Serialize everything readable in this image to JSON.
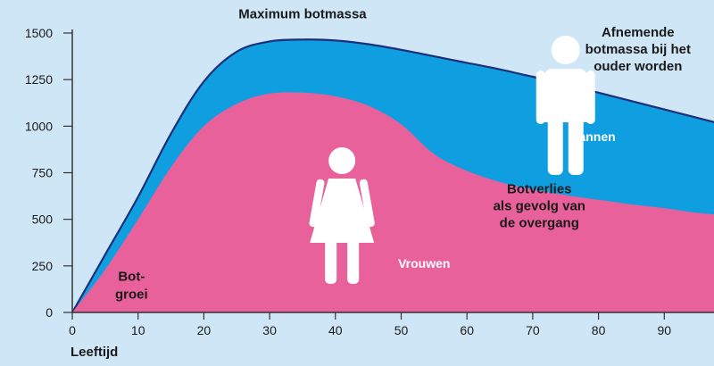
{
  "chart_data": {
    "type": "area",
    "xlabel": "Leeftijd",
    "ylabel": "",
    "xlim": [
      0,
      100
    ],
    "ylim": [
      0,
      1500
    ],
    "x_ticks": [
      0,
      10,
      20,
      30,
      40,
      50,
      60,
      70,
      80,
      90
    ],
    "y_ticks": [
      0,
      250,
      500,
      750,
      1000,
      1250,
      1500
    ],
    "grid": false,
    "series": [
      {
        "name": "Mannen",
        "color": "#0f9fe0",
        "x": [
          0,
          5,
          10,
          15,
          20,
          25,
          30,
          35,
          40,
          45,
          50,
          55,
          60,
          65,
          70,
          75,
          80,
          85,
          90,
          95,
          100
        ],
        "values": [
          0,
          310,
          620,
          960,
          1240,
          1400,
          1455,
          1465,
          1460,
          1440,
          1410,
          1375,
          1340,
          1305,
          1265,
          1225,
          1180,
          1135,
          1090,
          1045,
          1000
        ]
      },
      {
        "name": "Vrouwen",
        "color": "#e8619b",
        "x": [
          0,
          5,
          10,
          15,
          20,
          25,
          30,
          35,
          40,
          45,
          50,
          55,
          60,
          65,
          70,
          75,
          80,
          85,
          90,
          95,
          100
        ],
        "values": [
          0,
          230,
          500,
          780,
          1000,
          1120,
          1175,
          1180,
          1160,
          1110,
          1010,
          850,
          760,
          700,
          660,
          630,
          605,
          580,
          560,
          535,
          520
        ]
      }
    ],
    "annotations": [
      {
        "text": "Maximum botmassa",
        "x": 35,
        "y": 1580
      },
      {
        "lines": [
          "Afnemende",
          "botmassa bij het",
          "ouder worden"
        ],
        "x": 86,
        "y": 1480
      },
      {
        "lines": [
          "Botverlies",
          "als gevolg van",
          "de overgang"
        ],
        "x": 71,
        "y": 640
      },
      {
        "lines": [
          "Bot-",
          "groei"
        ],
        "x": 9,
        "y": 170
      },
      {
        "text": "Mannen",
        "x": 79,
        "y": 920
      },
      {
        "text": "Vrouwen",
        "x": 53.5,
        "y": 240
      }
    ],
    "figures": [
      {
        "name": "man",
        "x": 75,
        "color": "#ffffff"
      },
      {
        "name": "woman",
        "x": 41,
        "color": "#ffffff"
      }
    ]
  }
}
